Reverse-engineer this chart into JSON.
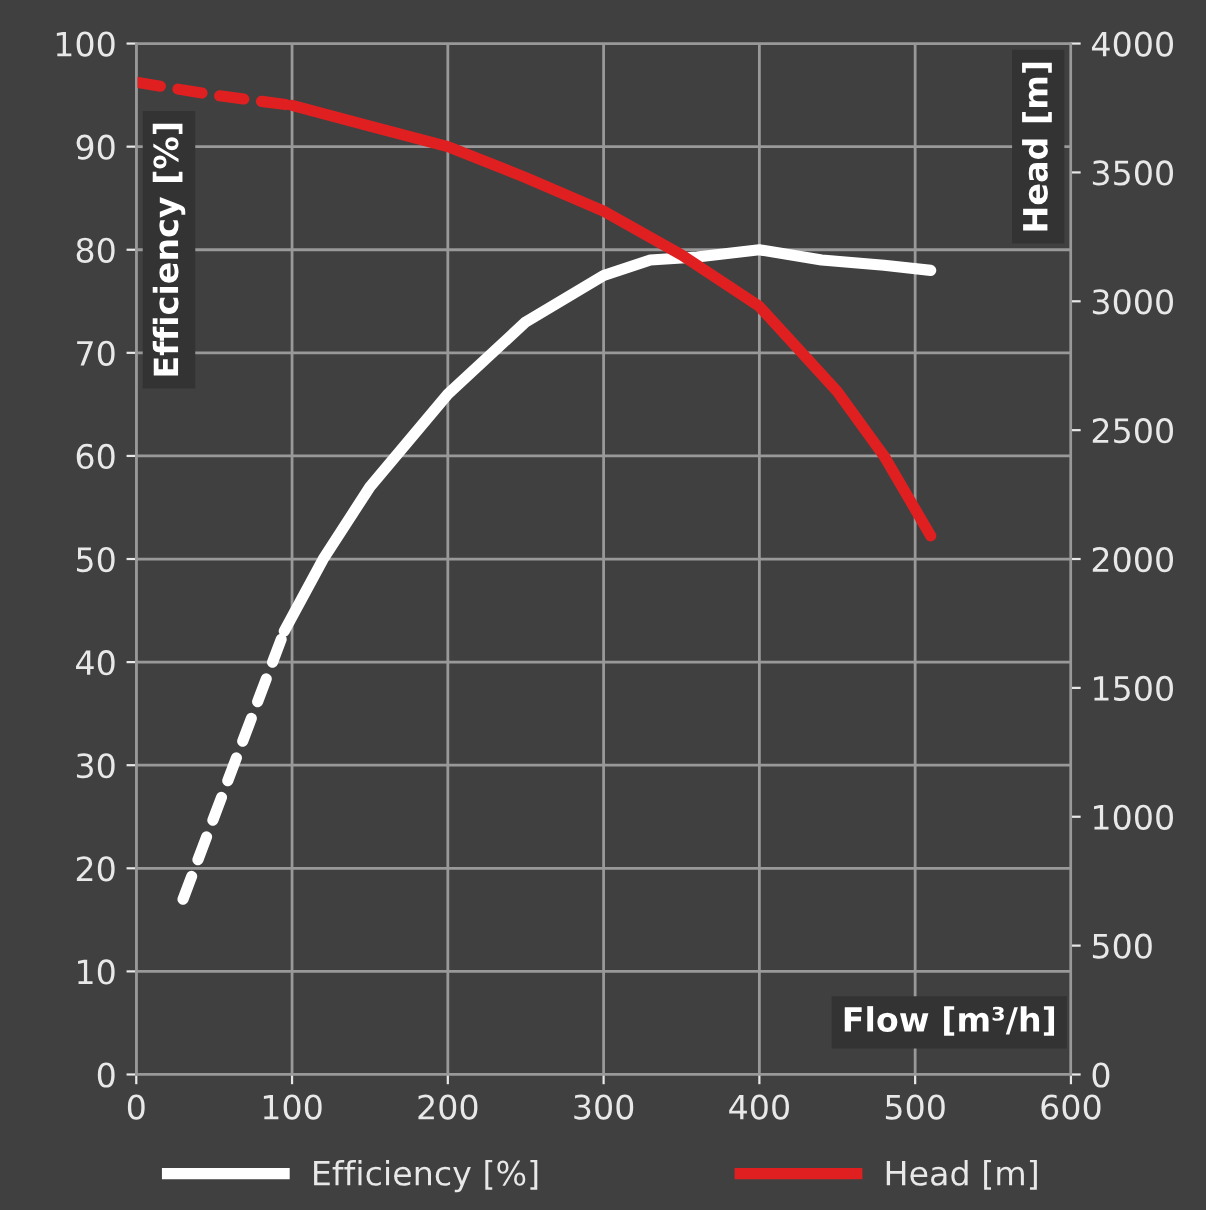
{
  "chart_data": {
    "type": "line",
    "xlabel": "Flow [m³/h]",
    "ylabel": "Efficiency [%]",
    "y2label": "Head [m]",
    "xlim": [
      0,
      600
    ],
    "xticks": [
      0,
      100,
      200,
      300,
      400,
      500,
      600
    ],
    "ylim": [
      0,
      100
    ],
    "yticks": [
      0,
      10,
      20,
      30,
      40,
      50,
      60,
      70,
      80,
      90,
      100
    ],
    "y2lim": [
      0,
      4000
    ],
    "y2ticks": [
      0,
      500,
      1000,
      1500,
      2000,
      2500,
      3000,
      3500,
      4000
    ],
    "grid": true,
    "legend": "bottom",
    "series": [
      {
        "color": "#ffffff",
        "line_style": "dashed",
        "x": [
          30,
          50,
          70,
          95
        ],
        "values": [
          17,
          25,
          33,
          43
        ]
      },
      {
        "name": "Efficiency [%]",
        "color": "#ffffff",
        "line_style": "solid",
        "x": [
          95,
          120,
          150,
          200,
          250,
          300,
          330,
          360,
          400,
          440,
          480,
          510
        ],
        "values": [
          43,
          50,
          57,
          66,
          73,
          77.5,
          79,
          79.3,
          80,
          79,
          78.5,
          78
        ]
      },
      {
        "color": "#e02020",
        "line_style": "dashed",
        "axis": "y2",
        "x": [
          0,
          50,
          100
        ],
        "values": [
          3850,
          3800,
          3760
        ]
      },
      {
        "name": "Head [m]",
        "color": "#e02020",
        "line_style": "solid",
        "axis": "y2",
        "x": [
          100,
          150,
          200,
          250,
          300,
          350,
          400,
          450,
          480,
          510
        ],
        "values": [
          3760,
          3680,
          3600,
          3480,
          3350,
          3180,
          2980,
          2650,
          2400,
          2090
        ]
      }
    ]
  }
}
